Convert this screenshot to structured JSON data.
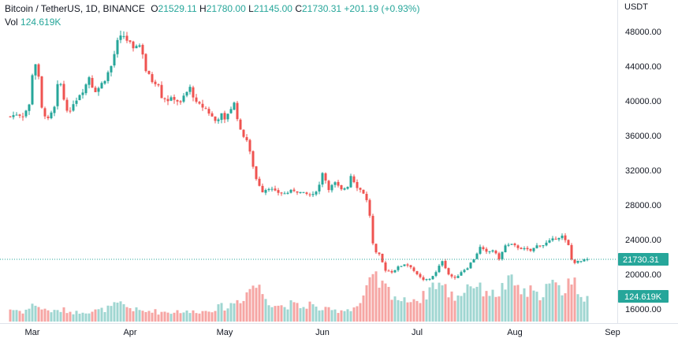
{
  "legend": {
    "title": "Bitcoin / TetherUS, 1D, BINANCE",
    "open_label": "O",
    "open_value": "21529.11",
    "high_label": "H",
    "high_value": "21780.00",
    "low_label": "L",
    "low_value": "21145.00",
    "close_label": "C",
    "close_value": "21730.31",
    "change": "+201.19 (+0.93%)",
    "vol_label": "Vol",
    "vol_value": "124.619K"
  },
  "axis": {
    "currency": "USDT"
  },
  "colors": {
    "up": "#26a69a",
    "down": "#ef5350",
    "vol_up": "#9fd6d1",
    "vol_down": "#f6a5a3",
    "text": "#131722",
    "last_price_line": "#26a69a",
    "vol_badge": "#26a69a"
  },
  "chart_data": {
    "type": "candlestick",
    "symbol": "Bitcoin / TetherUS",
    "interval": "1D",
    "exchange": "BINANCE",
    "ylim": [
      14500,
      49500
    ],
    "y_ticks": [
      "48000.00",
      "44000.00",
      "40000.00",
      "36000.00",
      "32000.00",
      "28000.00",
      "24000.00",
      "20000.00",
      "16000.00"
    ],
    "y_tick_values": [
      48000,
      44000,
      40000,
      36000,
      32000,
      28000,
      24000,
      20000,
      16000
    ],
    "x_ticks": [
      "Mar",
      "Apr",
      "May",
      "Jun",
      "Jul",
      "Aug",
      "Sep"
    ],
    "x_tick_days": [
      0,
      31,
      61,
      92,
      122,
      153,
      184
    ],
    "last_price": "21730.31",
    "last_price_value": 21730.31,
    "volume_badge": "124.619K",
    "anchors_close": [
      [
        -7,
        38200
      ],
      [
        -5,
        38500
      ],
      [
        -3,
        38300
      ],
      [
        -1,
        39500
      ],
      [
        0,
        43100
      ],
      [
        1,
        44300
      ],
      [
        2,
        42600
      ],
      [
        3,
        39100
      ],
      [
        4,
        38400
      ],
      [
        5,
        37800
      ],
      [
        6,
        38500
      ],
      [
        7,
        39200
      ],
      [
        8,
        41700
      ],
      [
        9,
        41900
      ],
      [
        10,
        40200
      ],
      [
        11,
        39100
      ],
      [
        12,
        38600
      ],
      [
        13,
        39800
      ],
      [
        14,
        40200
      ],
      [
        15,
        40800
      ],
      [
        16,
        41200
      ],
      [
        17,
        41900
      ],
      [
        18,
        42800
      ],
      [
        19,
        41700
      ],
      [
        20,
        41200
      ],
      [
        21,
        41500
      ],
      [
        23,
        42500
      ],
      [
        25,
        44000
      ],
      [
        27,
        46800
      ],
      [
        28,
        47300
      ],
      [
        29,
        47500
      ],
      [
        30,
        47000
      ],
      [
        31,
        46600
      ],
      [
        32,
        45800
      ],
      [
        33,
        46500
      ],
      [
        34,
        46400
      ],
      [
        35,
        45500
      ],
      [
        36,
        43500
      ],
      [
        38,
        42300
      ],
      [
        40,
        42000
      ],
      [
        41,
        40500
      ],
      [
        43,
        40100
      ],
      [
        45,
        40300
      ],
      [
        47,
        39700
      ],
      [
        48,
        40500
      ],
      [
        50,
        41500
      ],
      [
        52,
        39700
      ],
      [
        55,
        39100
      ],
      [
        58,
        37700
      ],
      [
        60,
        38400
      ],
      [
        61,
        37700
      ],
      [
        62,
        38600
      ],
      [
        64,
        39700
      ],
      [
        66,
        36500
      ],
      [
        68,
        35500
      ],
      [
        69,
        34000
      ],
      [
        71,
        31000
      ],
      [
        73,
        29600
      ],
      [
        75,
        30000
      ],
      [
        77,
        29500
      ],
      [
        80,
        29300
      ],
      [
        83,
        29700
      ],
      [
        86,
        29300
      ],
      [
        89,
        29100
      ],
      [
        91,
        30300
      ],
      [
        92,
        31800
      ],
      [
        94,
        29900
      ],
      [
        96,
        30500
      ],
      [
        98,
        29700
      ],
      [
        100,
        30200
      ],
      [
        101,
        31400
      ],
      [
        103,
        30100
      ],
      [
        105,
        29400
      ],
      [
        106,
        28500
      ],
      [
        107,
        26800
      ],
      [
        108,
        23500
      ],
      [
        109,
        22400
      ],
      [
        110,
        22200
      ],
      [
        112,
        20500
      ],
      [
        114,
        20300
      ],
      [
        116,
        20800
      ],
      [
        118,
        21200
      ],
      [
        120,
        20900
      ],
      [
        122,
        19900
      ],
      [
        124,
        19300
      ],
      [
        126,
        19500
      ],
      [
        128,
        20200
      ],
      [
        130,
        21600
      ],
      [
        132,
        20000
      ],
      [
        134,
        19500
      ],
      [
        136,
        20300
      ],
      [
        138,
        20800
      ],
      [
        140,
        21800
      ],
      [
        142,
        23100
      ],
      [
        144,
        22500
      ],
      [
        146,
        22800
      ],
      [
        148,
        21800
      ],
      [
        150,
        23300
      ],
      [
        152,
        23400
      ],
      [
        154,
        23100
      ],
      [
        156,
        22900
      ],
      [
        158,
        22700
      ],
      [
        160,
        23300
      ],
      [
        162,
        23400
      ],
      [
        164,
        23800
      ],
      [
        166,
        24200
      ],
      [
        168,
        24400
      ],
      [
        170,
        23300
      ],
      [
        171,
        21700
      ],
      [
        172,
        21400
      ],
      [
        174,
        21500
      ],
      [
        176,
        21730.31
      ]
    ],
    "anchors_volume": [
      [
        -7,
        15
      ],
      [
        -5,
        14
      ],
      [
        -3,
        12
      ],
      [
        -1,
        16
      ],
      [
        0,
        19
      ],
      [
        1,
        22
      ],
      [
        3,
        15
      ],
      [
        5,
        14
      ],
      [
        7,
        12
      ],
      [
        8,
        13
      ],
      [
        10,
        14
      ],
      [
        12,
        12
      ],
      [
        14,
        11
      ],
      [
        16,
        13
      ],
      [
        18,
        12
      ],
      [
        20,
        13
      ],
      [
        22,
        14
      ],
      [
        24,
        16
      ],
      [
        26,
        19
      ],
      [
        28,
        21
      ],
      [
        30,
        18
      ],
      [
        32,
        15
      ],
      [
        34,
        13
      ],
      [
        36,
        12
      ],
      [
        38,
        14
      ],
      [
        40,
        11
      ],
      [
        42,
        12
      ],
      [
        44,
        11
      ],
      [
        46,
        13
      ],
      [
        48,
        12
      ],
      [
        50,
        11
      ],
      [
        52,
        13
      ],
      [
        54,
        12
      ],
      [
        56,
        14
      ],
      [
        58,
        16
      ],
      [
        60,
        18
      ],
      [
        62,
        17
      ],
      [
        64,
        24
      ],
      [
        66,
        27
      ],
      [
        68,
        35
      ],
      [
        70,
        45
      ],
      [
        72,
        40
      ],
      [
        74,
        30
      ],
      [
        76,
        22
      ],
      [
        78,
        20
      ],
      [
        80,
        18
      ],
      [
        82,
        21
      ],
      [
        84,
        19
      ],
      [
        86,
        17
      ],
      [
        88,
        22
      ],
      [
        90,
        16
      ],
      [
        92,
        15
      ],
      [
        94,
        14
      ],
      [
        96,
        13
      ],
      [
        98,
        14
      ],
      [
        100,
        15
      ],
      [
        102,
        17
      ],
      [
        104,
        22
      ],
      [
        106,
        37
      ],
      [
        108,
        52
      ],
      [
        110,
        46
      ],
      [
        112,
        40
      ],
      [
        114,
        35
      ],
      [
        116,
        28
      ],
      [
        118,
        24
      ],
      [
        120,
        30
      ],
      [
        122,
        26
      ],
      [
        124,
        30
      ],
      [
        126,
        40
      ],
      [
        128,
        48
      ],
      [
        130,
        43
      ],
      [
        132,
        35
      ],
      [
        134,
        30
      ],
      [
        136,
        34
      ],
      [
        138,
        44
      ],
      [
        140,
        47
      ],
      [
        142,
        38
      ],
      [
        144,
        40
      ],
      [
        146,
        32
      ],
      [
        148,
        36
      ],
      [
        150,
        44
      ],
      [
        152,
        47
      ],
      [
        154,
        42
      ],
      [
        156,
        33
      ],
      [
        158,
        36
      ],
      [
        160,
        30
      ],
      [
        162,
        38
      ],
      [
        164,
        44
      ],
      [
        166,
        42
      ],
      [
        168,
        36
      ],
      [
        170,
        50
      ],
      [
        172,
        46
      ],
      [
        174,
        34
      ],
      [
        176,
        30
      ]
    ]
  }
}
